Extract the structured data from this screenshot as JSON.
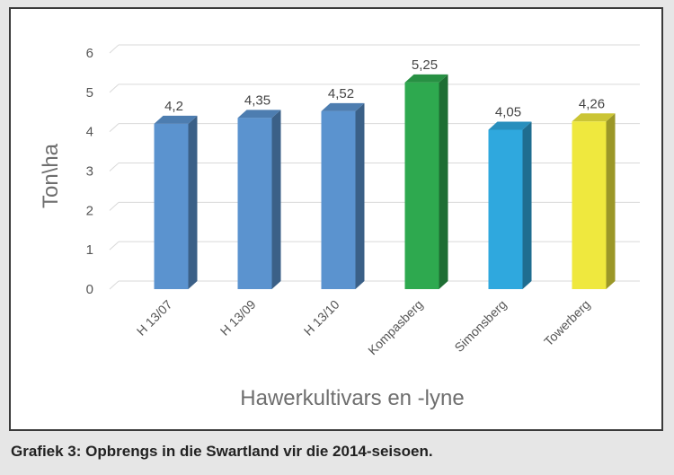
{
  "caption": "Grafiek 3: Opbrengs in die Swartland vir die 2014-seisoen.",
  "chart_data": {
    "type": "bar",
    "style": "3d-column",
    "categories": [
      "H 13/07",
      "H 13/09",
      "H 13/10",
      "Kompasberg",
      "Simonsberg",
      "Towerberg"
    ],
    "values": [
      4.2,
      4.35,
      4.52,
      5.25,
      4.05,
      4.26
    ],
    "data_labels": [
      "4,2",
      "4,35",
      "4,52",
      "5,25",
      "4,05",
      "4,26"
    ],
    "colors": [
      "#5b93cf",
      "#5b93cf",
      "#5b93cf",
      "#2ea94f",
      "#2fa8de",
      "#efe83e"
    ],
    "ylabel": "Ton\\ha",
    "xlabel": "Hawerkultivars en -lyne",
    "ylim": [
      0,
      6
    ],
    "yticks": [
      "0",
      "1",
      "2",
      "3",
      "4",
      "5",
      "6"
    ],
    "grid": true,
    "legend": "none"
  }
}
